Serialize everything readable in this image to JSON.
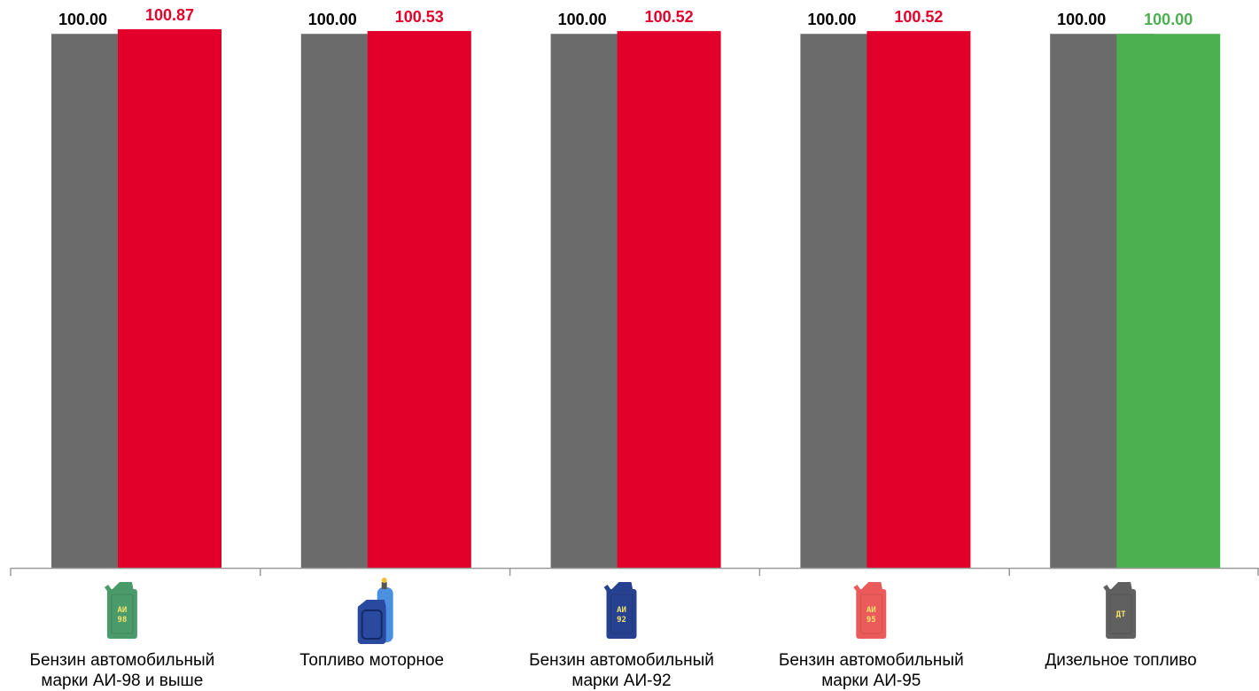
{
  "chart_data": {
    "type": "bar",
    "categories": [
      [
        "Бензин автомобильный",
        "марки АИ-98 и выше"
      ],
      [
        "Топливо моторное"
      ],
      [
        "Бензин автомобильный",
        "марки АИ-92"
      ],
      [
        "Бензин автомобильный",
        "марки АИ-95"
      ],
      [
        "Дизельное топливо"
      ]
    ],
    "series": [
      {
        "values": [
          100.0,
          100.0,
          100.0,
          100.0,
          100.0
        ],
        "value_labels": [
          "100.00",
          "100.00",
          "100.00",
          "100.00",
          "100.00"
        ],
        "color": "#6b6b6b",
        "label_color": "#000000"
      },
      {
        "values": [
          100.87,
          100.53,
          100.52,
          100.52,
          100.0
        ],
        "value_labels": [
          "100.87",
          "100.53",
          "100.52",
          "100.52",
          "100.00"
        ],
        "colors": [
          "#e2002a",
          "#e2002a",
          "#e2002a",
          "#e2002a",
          "#4caf50"
        ],
        "label_colors": [
          "#e2002a",
          "#e2002a",
          "#e2002a",
          "#e2002a",
          "#4caf50"
        ]
      }
    ],
    "ylim": [
      0,
      101.2
    ],
    "grid": false,
    "legend": "none"
  },
  "icons": [
    {
      "name": "canister-ai98-icon",
      "text": [
        "АИ",
        "98"
      ],
      "color": "#4a9a6a",
      "text_color": "#f3e46a"
    },
    {
      "name": "gas-canister-icon",
      "text": [],
      "color": "#2a4aa0",
      "text_color": "#ffffff"
    },
    {
      "name": "canister-ai92-icon",
      "text": [
        "АИ",
        "92"
      ],
      "color": "#26418f",
      "text_color": "#f3e46a"
    },
    {
      "name": "canister-ai95-icon",
      "text": [
        "АИ",
        "95"
      ],
      "color": "#ec5b5b",
      "text_color": "#f3e46a"
    },
    {
      "name": "canister-dt-icon",
      "text": [
        "ДТ"
      ],
      "color": "#606060",
      "text_color": "#f3e46a"
    }
  ]
}
